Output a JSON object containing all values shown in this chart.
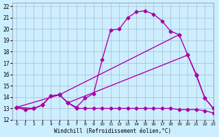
{
  "xlabel": "Windchill (Refroidissement éolien,°C)",
  "bg_color": "#cceeff",
  "grid_color": "#aabbcc",
  "line_color": "#aa00aa",
  "xlim": [
    -0.5,
    23
  ],
  "ylim": [
    12,
    22.3
  ],
  "xticks": [
    0,
    1,
    2,
    3,
    4,
    5,
    6,
    7,
    8,
    9,
    10,
    11,
    12,
    13,
    14,
    15,
    16,
    17,
    18,
    19,
    20,
    21,
    22,
    23
  ],
  "yticks": [
    12,
    13,
    14,
    15,
    16,
    17,
    18,
    19,
    20,
    21,
    22
  ],
  "line1_x": [
    0,
    1,
    2,
    3,
    4,
    5,
    6,
    7,
    8,
    9,
    10,
    11,
    12,
    13,
    14,
    15,
    16,
    17,
    18,
    19
  ],
  "line1_y": [
    13.1,
    12.9,
    13.0,
    13.3,
    14.1,
    14.2,
    13.5,
    13.1,
    13.9,
    14.3,
    17.3,
    19.9,
    20.0,
    21.0,
    21.5,
    21.6,
    21.3,
    20.7,
    19.8,
    19.5
  ],
  "line2_x": [
    0,
    1,
    2,
    3,
    4,
    5,
    6,
    7,
    8,
    9,
    10,
    11,
    12,
    13,
    14,
    15,
    16,
    17,
    18,
    19,
    20,
    21,
    22,
    23
  ],
  "line2_y": [
    13.1,
    12.9,
    13.0,
    13.3,
    14.1,
    14.2,
    13.5,
    13.0,
    13.0,
    13.0,
    13.0,
    13.0,
    13.0,
    13.0,
    13.0,
    13.0,
    13.0,
    13.0,
    13.0,
    12.9,
    12.9,
    12.9,
    12.8,
    12.6
  ],
  "line3_x": [
    0,
    2,
    3,
    4,
    5,
    19,
    20,
    21,
    22,
    23
  ],
  "line3_y": [
    13.1,
    13.0,
    13.3,
    14.1,
    14.2,
    19.5,
    17.7,
    16.0,
    13.9,
    13.0
  ],
  "line4_x": [
    0,
    5,
    6,
    20,
    21,
    22,
    23
  ],
  "line4_y": [
    13.1,
    14.2,
    13.5,
    17.7,
    15.9,
    13.9,
    13.0
  ],
  "marker": "D",
  "markersize": 2.5,
  "linewidth": 1.0
}
